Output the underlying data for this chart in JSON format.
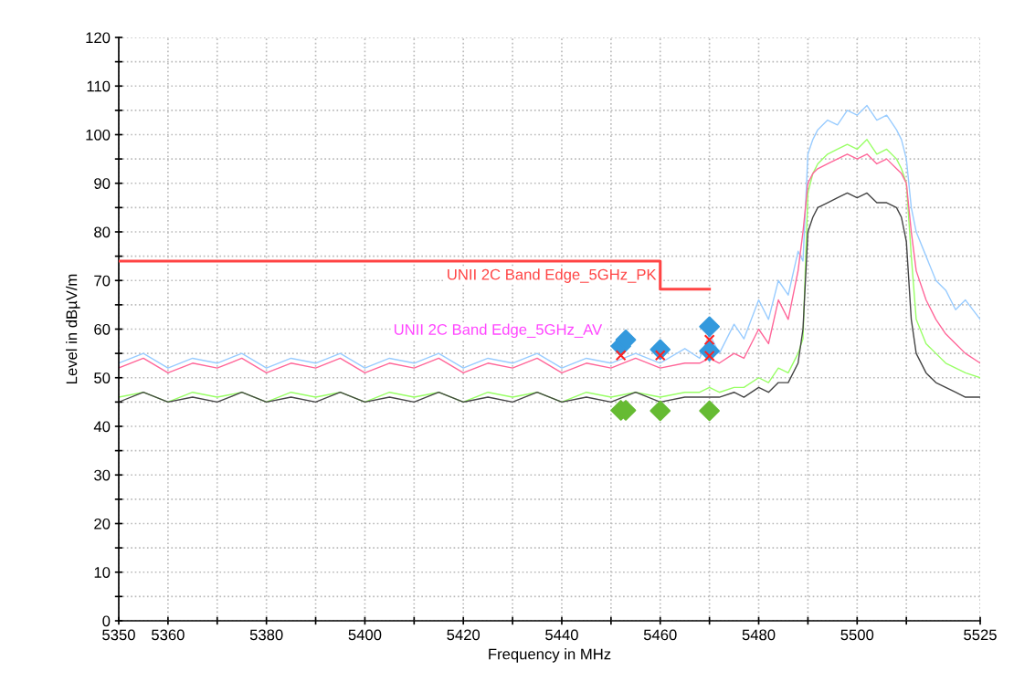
{
  "chart_data": {
    "type": "line",
    "xlabel": "Frequency in MHz",
    "ylabel": "Level in dBµV/m",
    "xlim": [
      5350,
      5525
    ],
    "ylim": [
      0,
      120
    ],
    "xticks": [
      5350,
      5360,
      {
        "value": 5370,
        "label": null
      },
      5380,
      {
        "value": 5390,
        "label": null
      },
      5400,
      {
        "value": 5410,
        "label": null
      },
      5420,
      {
        "value": 5430,
        "label": null
      },
      5440,
      {
        "value": 5450,
        "label": null
      },
      5460,
      {
        "value": 5470,
        "label": null
      },
      5480,
      {
        "value": 5490,
        "label": null
      },
      5500,
      {
        "value": 5510,
        "label": null
      },
      5525
    ],
    "yticks": [
      0,
      {
        "value": 5,
        "label": null
      },
      10,
      {
        "value": 15,
        "label": null
      },
      20,
      {
        "value": 25,
        "label": null
      },
      30,
      {
        "value": 35,
        "label": null
      },
      40,
      {
        "value": 45,
        "label": null
      },
      50,
      {
        "value": 55,
        "label": null
      },
      60,
      {
        "value": 65,
        "label": null
      },
      70,
      {
        "value": 75,
        "label": null
      },
      80,
      {
        "value": 85,
        "label": null
      },
      90,
      {
        "value": 95,
        "label": null
      },
      100,
      {
        "value": 105,
        "label": null
      },
      110,
      {
        "value": 115,
        "label": null
      },
      120
    ],
    "grid": true,
    "line_style": "solid",
    "series": [
      {
        "color": "#99ccff",
        "x": [
          5350,
          5355,
          5360,
          5365,
          5370,
          5375,
          5380,
          5385,
          5390,
          5395,
          5400,
          5405,
          5410,
          5415,
          5420,
          5425,
          5430,
          5435,
          5440,
          5445,
          5450,
          5455,
          5460,
          5465,
          5468,
          5470,
          5472,
          5475,
          5477,
          5480,
          5482,
          5484,
          5486,
          5488,
          5489,
          5490,
          5491,
          5492,
          5494,
          5496,
          5498,
          5500,
          5502,
          5504,
          5506,
          5508,
          5509,
          5510,
          5511,
          5512,
          5514,
          5516,
          5518,
          5520,
          5522,
          5525
        ],
        "values": [
          53,
          55,
          52,
          54,
          53,
          55,
          52,
          54,
          53,
          55,
          52,
          54,
          53,
          55,
          52,
          54,
          53,
          55,
          52,
          54,
          53,
          55,
          53,
          56,
          54,
          59,
          55,
          61,
          58,
          66,
          62,
          70,
          67,
          76,
          74,
          96,
          99,
          101,
          103,
          102,
          105,
          104,
          106,
          103,
          104,
          101,
          99,
          95,
          85,
          80,
          75,
          70,
          68,
          64,
          66,
          62
        ]
      },
      {
        "color": "#99ff66",
        "x": [
          5350,
          5355,
          5360,
          5365,
          5370,
          5375,
          5380,
          5385,
          5390,
          5395,
          5400,
          5405,
          5410,
          5415,
          5420,
          5425,
          5430,
          5435,
          5440,
          5445,
          5450,
          5455,
          5460,
          5465,
          5468,
          5470,
          5472,
          5475,
          5477,
          5480,
          5482,
          5484,
          5486,
          5488,
          5489,
          5490,
          5491,
          5492,
          5494,
          5496,
          5498,
          5500,
          5502,
          5504,
          5506,
          5508,
          5509,
          5510,
          5511,
          5512,
          5514,
          5516,
          5518,
          5520,
          5522,
          5525
        ],
        "values": [
          46,
          47,
          45,
          47,
          46,
          47,
          45,
          47,
          46,
          47,
          45,
          47,
          46,
          47,
          45,
          47,
          46,
          47,
          45,
          47,
          46,
          47,
          46,
          47,
          47,
          48,
          47,
          48,
          48,
          50,
          49,
          52,
          51,
          55,
          58,
          88,
          92,
          94,
          96,
          97,
          98,
          97,
          99,
          96,
          97,
          95,
          93,
          90,
          75,
          62,
          57,
          55,
          53,
          52,
          51,
          50
        ]
      },
      {
        "color": "#ff6699",
        "x": [
          5350,
          5355,
          5360,
          5365,
          5370,
          5375,
          5380,
          5385,
          5390,
          5395,
          5400,
          5405,
          5410,
          5415,
          5420,
          5425,
          5430,
          5435,
          5440,
          5445,
          5450,
          5455,
          5460,
          5465,
          5468,
          5470,
          5472,
          5475,
          5477,
          5480,
          5482,
          5484,
          5486,
          5488,
          5489,
          5490,
          5491,
          5492,
          5494,
          5496,
          5498,
          5500,
          5502,
          5504,
          5506,
          5508,
          5509,
          5510,
          5511,
          5512,
          5514,
          5516,
          5518,
          5520,
          5522,
          5525
        ],
        "values": [
          52,
          54,
          51,
          53,
          52,
          54,
          51,
          53,
          52,
          54,
          51,
          53,
          52,
          54,
          51,
          53,
          52,
          54,
          51,
          53,
          52,
          54,
          52,
          53,
          53,
          54,
          53,
          55,
          54,
          60,
          57,
          66,
          62,
          72,
          80,
          90,
          92,
          93,
          94,
          95,
          96,
          95,
          96,
          94,
          95,
          93,
          92,
          90,
          80,
          72,
          66,
          62,
          59,
          57,
          55,
          53
        ]
      },
      {
        "color": "#444444",
        "x": [
          5350,
          5355,
          5360,
          5365,
          5370,
          5375,
          5380,
          5385,
          5390,
          5395,
          5400,
          5405,
          5410,
          5415,
          5420,
          5425,
          5430,
          5435,
          5440,
          5445,
          5450,
          5455,
          5460,
          5465,
          5468,
          5470,
          5472,
          5475,
          5477,
          5480,
          5482,
          5484,
          5486,
          5488,
          5489,
          5490,
          5491,
          5492,
          5494,
          5496,
          5498,
          5500,
          5502,
          5504,
          5506,
          5508,
          5509,
          5510,
          5511,
          5512,
          5514,
          5516,
          5518,
          5520,
          5522,
          5525
        ],
        "values": [
          45,
          47,
          45,
          46,
          45,
          47,
          45,
          46,
          45,
          47,
          45,
          46,
          45,
          47,
          45,
          46,
          45,
          47,
          45,
          46,
          45,
          47,
          45,
          46,
          46,
          46,
          46,
          47,
          46,
          48,
          47,
          49,
          49,
          53,
          60,
          80,
          83,
          85,
          86,
          87,
          88,
          87,
          88,
          86,
          86,
          85,
          83,
          78,
          62,
          55,
          51,
          49,
          48,
          47,
          46,
          46
        ]
      },
      {
        "type": "step",
        "name": "UNII 2C Band Edge_5GHz_PK",
        "color": "#ff4444",
        "x": [
          5350,
          5460,
          5470
        ],
        "values": [
          74,
          68.2,
          68.2
        ]
      },
      {
        "type": "scatter",
        "marker": "diamond",
        "color": "#3399dd",
        "x": [
          5452,
          5453,
          5460,
          5470,
          5470
        ],
        "values": [
          56.5,
          57.8,
          55.8,
          60.5,
          55.5
        ]
      },
      {
        "type": "scatter",
        "marker": "diamond",
        "color": "#66bb33",
        "x": [
          5452,
          5453,
          5460,
          5470
        ],
        "values": [
          43.3,
          43.3,
          43.2,
          43.2
        ]
      },
      {
        "type": "scatter",
        "marker": "cross",
        "color": "#ff2222",
        "x": [
          5452,
          5460,
          5470,
          5470
        ],
        "values": [
          54.6,
          54.6,
          57.8,
          54.5
        ]
      }
    ],
    "annotations": [
      "UNII 2C Band Edge_5GHz_AV"
    ]
  }
}
